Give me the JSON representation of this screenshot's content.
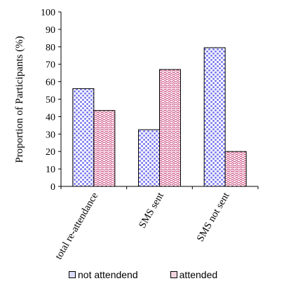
{
  "chart_data": {
    "type": "bar",
    "categories": [
      "total re-attendance",
      "SMS sent",
      "SMS not sent"
    ],
    "series": [
      {
        "name": "not attendend",
        "values": [
          56,
          32.5,
          79.5
        ],
        "pattern": "dots",
        "color": "#7b7bf0"
      },
      {
        "name": "attended",
        "values": [
          43.5,
          67,
          20
        ],
        "pattern": "waves",
        "color": "#c4306a"
      }
    ],
    "ylabel": "Proportion of Participants (%)",
    "xlabel": "",
    "ylim": [
      0,
      100
    ],
    "yticks": [
      0,
      10,
      20,
      30,
      40,
      50,
      60,
      70,
      80,
      90,
      100
    ],
    "grid": false,
    "legend_position": "bottom"
  }
}
